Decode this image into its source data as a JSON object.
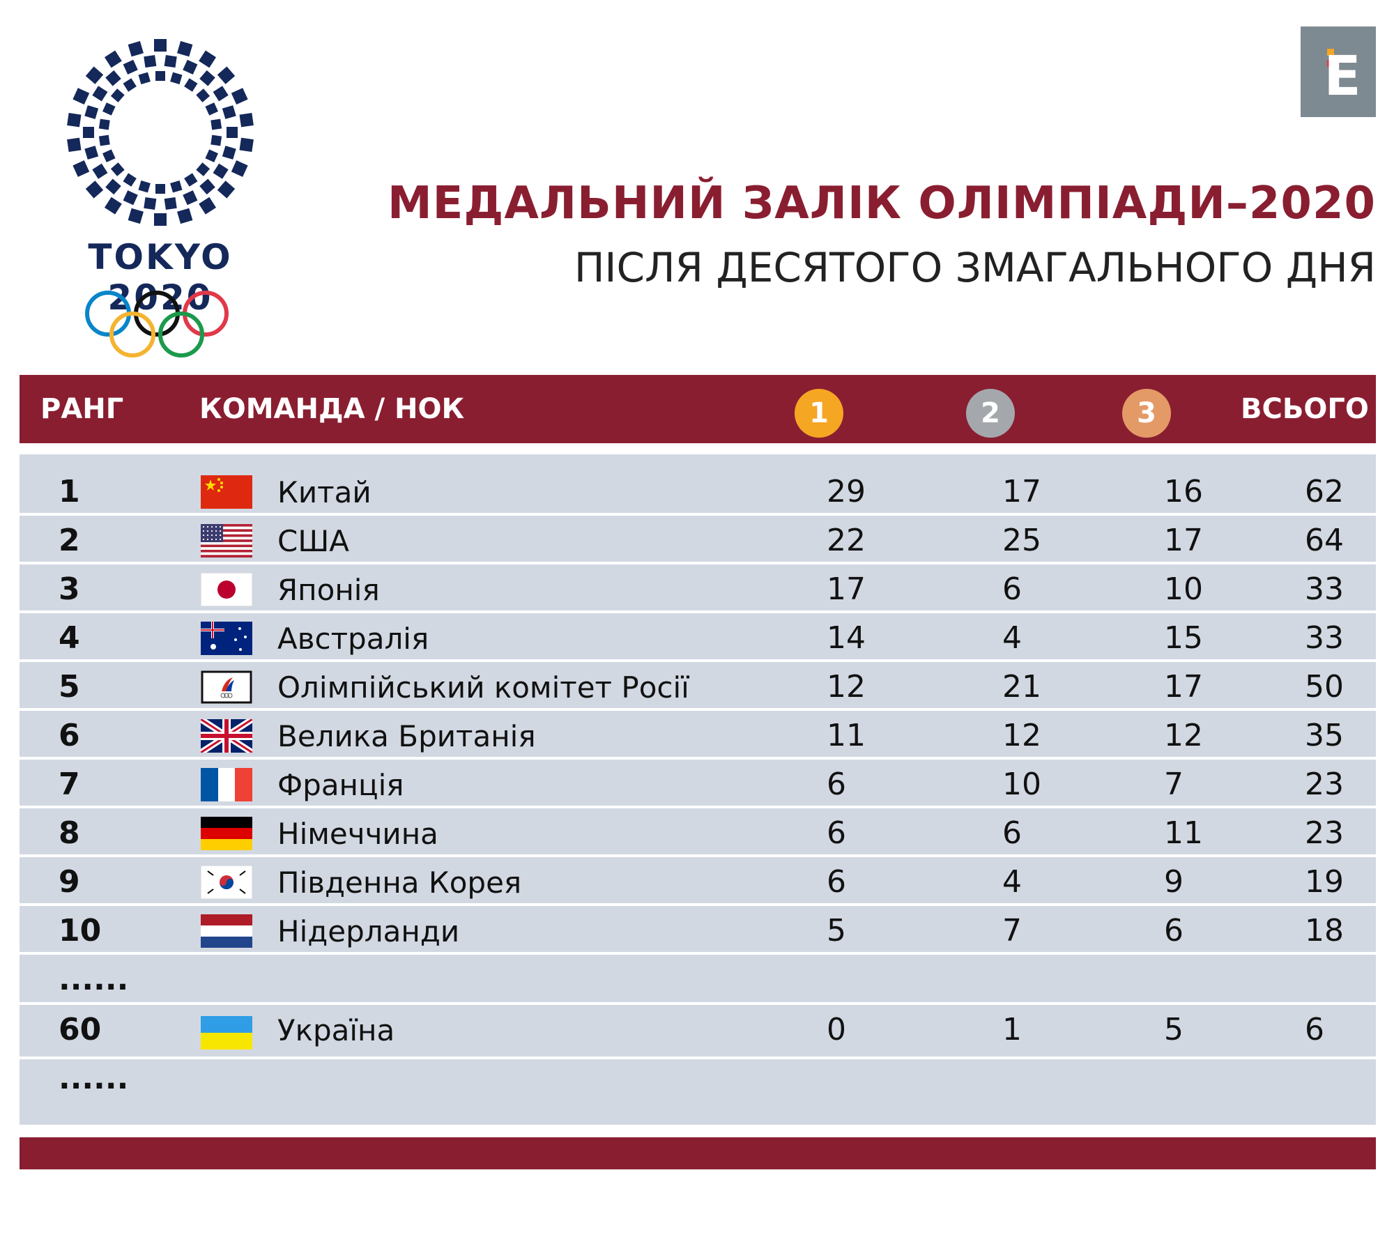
{
  "logo": {
    "text": "TOKYO 2020"
  },
  "brand": {
    "letter": "E"
  },
  "title": "МЕДАЛЬНИЙ ЗАЛІК ОЛІМПІАДИ–2020",
  "subtitle": "ПІСЛЯ ДЕСЯТОГО ЗМАГАЛЬНОГО ДНЯ",
  "colors": {
    "accent": "#8a1e31",
    "table_bg": "#d2d8e2",
    "gold": "#f5a623",
    "silver": "#a4a8ad",
    "bronze": "#e49a66"
  },
  "header": {
    "rank": "РАНГ",
    "team": "КОМАНДА / НОК",
    "gold": "1",
    "silver": "2",
    "bronze": "3",
    "total": "ВСЬОГО"
  },
  "rows": [
    {
      "rank": "1",
      "flag": "china-flag",
      "country": "Китай",
      "gold": "29",
      "silver": "17",
      "bronze": "16",
      "total": "62"
    },
    {
      "rank": "2",
      "flag": "usa-flag",
      "country": "США",
      "gold": "22",
      "silver": "25",
      "bronze": "17",
      "total": "64"
    },
    {
      "rank": "3",
      "flag": "japan-flag",
      "country": "Японія",
      "gold": "17",
      "silver": "6",
      "bronze": "10",
      "total": "33"
    },
    {
      "rank": "4",
      "flag": "australia-flag",
      "country": "Австралія",
      "gold": "14",
      "silver": "4",
      "bronze": "15",
      "total": "33"
    },
    {
      "rank": "5",
      "flag": "roc-flag",
      "country": "Олімпійський комітет Росії",
      "gold": "12",
      "silver": "21",
      "bronze": "17",
      "total": "50"
    },
    {
      "rank": "6",
      "flag": "uk-flag",
      "country": "Велика Британія",
      "gold": "11",
      "silver": "12",
      "bronze": "12",
      "total": "35"
    },
    {
      "rank": "7",
      "flag": "france-flag",
      "country": "Франція",
      "gold": "6",
      "silver": "10",
      "bronze": "7",
      "total": "23"
    },
    {
      "rank": "8",
      "flag": "germany-flag",
      "country": "Німеччина",
      "gold": "6",
      "silver": "6",
      "bronze": "11",
      "total": "23"
    },
    {
      "rank": "9",
      "flag": "south-korea-flag",
      "country": "Південна Корея",
      "gold": "6",
      "silver": "4",
      "bronze": "9",
      "total": "19"
    },
    {
      "rank": "10",
      "flag": "netherlands-flag",
      "country": "Нідерланди",
      "gold": "5",
      "silver": "7",
      "bronze": "6",
      "total": "18"
    }
  ],
  "ellipsis": "......",
  "ukraine_row": {
    "rank": "60",
    "flag": "ukraine-flag",
    "country": "Україна",
    "gold": "0",
    "silver": "1",
    "bronze": "5",
    "total": "6"
  }
}
